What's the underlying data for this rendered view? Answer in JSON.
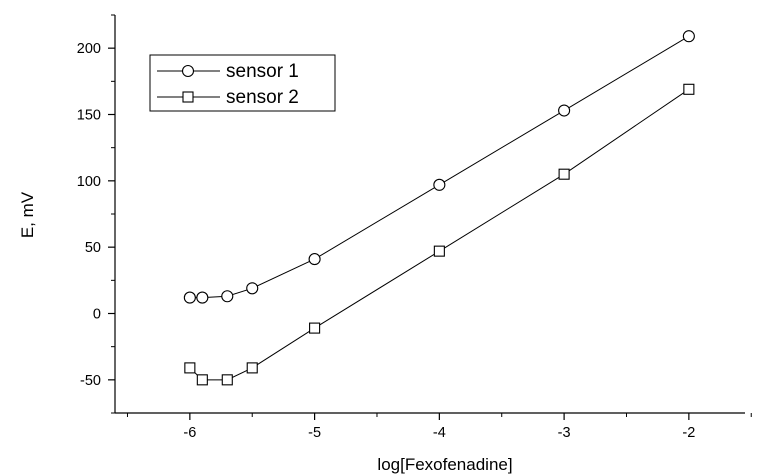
{
  "chart_data": {
    "type": "line",
    "title": "",
    "xlabel": "log[Fexofenadine]",
    "ylabel": "E, mV",
    "xlim": [
      -6.6,
      -1.55
    ],
    "ylim": [
      -75,
      225
    ],
    "x_ticks": [
      -6,
      -5,
      -4,
      -3,
      -2
    ],
    "x_tick_labels": [
      "-6",
      "-5",
      "-4",
      "-3",
      "-2"
    ],
    "y_ticks": [
      -50,
      0,
      50,
      100,
      150,
      200
    ],
    "y_tick_labels": [
      "-50",
      "0",
      "50",
      "100",
      "150",
      "200"
    ],
    "grid": false,
    "legend_position": "top-left",
    "series": [
      {
        "name": "sensor 1",
        "marker": "circle",
        "color": "#000000",
        "x": [
          -6,
          -5.9,
          -5.7,
          -5.5,
          -5,
          -4,
          -3,
          -2
        ],
        "y": [
          12,
          12,
          13,
          19,
          41,
          97,
          153,
          209
        ]
      },
      {
        "name": "sensor 2",
        "marker": "square",
        "color": "#000000",
        "x": [
          -6,
          -5.9,
          -5.7,
          -5.5,
          -5,
          -4,
          -3,
          -2
        ],
        "y": [
          -41,
          -50,
          -50,
          -41,
          -11,
          47,
          105,
          169
        ]
      }
    ]
  }
}
